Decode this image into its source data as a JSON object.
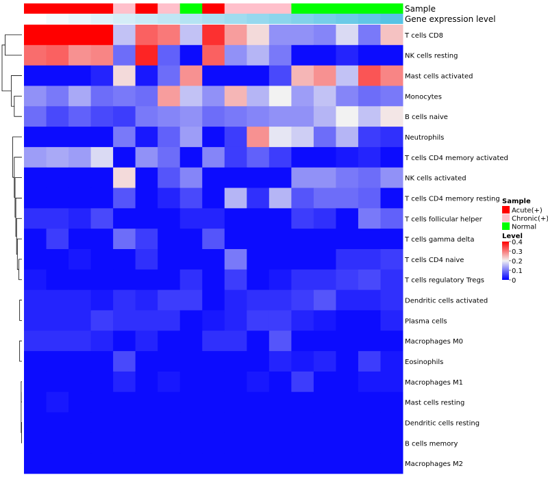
{
  "chart_data": {
    "type": "heatmap",
    "annotation_rows": [
      "Sample",
      "Gene expression level"
    ],
    "sample_groups": [
      "Acute(+)",
      "Acute(+)",
      "Acute(+)",
      "Acute(+)",
      "Chronic(+)",
      "Acute(+)",
      "Chronic(+)",
      "Normal",
      "Acute(+)",
      "Chronic(+)",
      "Chronic(+)",
      "Chronic(+)",
      "Normal",
      "Normal",
      "Normal",
      "Normal",
      "Normal"
    ],
    "expression_gradient": [
      "#ffffff",
      "#f4fafd",
      "#eaf6fb",
      "#dff1f9",
      "#d5edf7",
      "#caeaf6",
      "#c0e6f4",
      "#b5e3f3",
      "#abdff1",
      "#a0dcef",
      "#96d8ee",
      "#8bd5ec",
      "#81d1ea",
      "#76cde9",
      "#6ccae7",
      "#61c6e6",
      "#57c3e4"
    ],
    "rows": [
      {
        "label": "T cells CD8",
        "values": [
          0.4,
          0.4,
          0.4,
          0.4,
          0.16,
          0.32,
          0.3,
          0.16,
          0.36,
          0.27,
          0.22,
          0.12,
          0.12,
          0.11,
          0.18,
          0.1,
          0.24
        ]
      },
      {
        "label": "NK cells resting",
        "values": [
          0.31,
          0.32,
          0.28,
          0.29,
          0.09,
          0.37,
          0.08,
          0.01,
          0.32,
          0.12,
          0.15,
          0.1,
          0.01,
          0.01,
          0.03,
          0.01,
          0.01
        ]
      },
      {
        "label": "Mast cells activated",
        "values": [
          0.01,
          0.01,
          0.01,
          0.03,
          0.22,
          0.02,
          0.09,
          0.28,
          0.01,
          0.01,
          0.01,
          0.06,
          0.25,
          0.28,
          0.16,
          0.33,
          0.29
        ]
      },
      {
        "label": "Monocytes",
        "values": [
          0.12,
          0.1,
          0.14,
          0.09,
          0.1,
          0.09,
          0.27,
          0.16,
          0.12,
          0.25,
          0.15,
          0.2,
          0.13,
          0.16,
          0.11,
          0.09,
          0.1
        ]
      },
      {
        "label": "B cells naive",
        "values": [
          0.09,
          0.06,
          0.08,
          0.06,
          0.05,
          0.1,
          0.11,
          0.12,
          0.09,
          0.1,
          0.11,
          0.12,
          0.12,
          0.15,
          0.2,
          0.16,
          0.21
        ]
      },
      {
        "label": "Neutrophils",
        "values": [
          0.01,
          0.01,
          0.01,
          0.01,
          0.1,
          0.02,
          0.08,
          0.13,
          0.01,
          0.05,
          0.28,
          0.19,
          0.17,
          0.09,
          0.15,
          0.05,
          0.04
        ]
      },
      {
        "label": "T cells CD4 memory activated",
        "values": [
          0.13,
          0.14,
          0.13,
          0.18,
          0.01,
          0.12,
          0.09,
          0.01,
          0.11,
          0.05,
          0.08,
          0.05,
          0.01,
          0.01,
          0.02,
          0.03,
          0.01
        ]
      },
      {
        "label": "NK cells activated",
        "values": [
          0.01,
          0.01,
          0.01,
          0.01,
          0.22,
          0.01,
          0.07,
          0.11,
          0.01,
          0.01,
          0.01,
          0.01,
          0.12,
          0.12,
          0.1,
          0.09,
          0.12
        ]
      },
      {
        "label": "T cells CD4 memory resting",
        "values": [
          0.01,
          0.01,
          0.01,
          0.01,
          0.07,
          0.01,
          0.03,
          0.06,
          0.01,
          0.15,
          0.04,
          0.15,
          0.07,
          0.09,
          0.09,
          0.08,
          0.01
        ]
      },
      {
        "label": "T cells follicular helper",
        "values": [
          0.04,
          0.04,
          0.03,
          0.06,
          0.01,
          0.01,
          0.01,
          0.03,
          0.03,
          0.01,
          0.01,
          0.01,
          0.05,
          0.04,
          0.01,
          0.1,
          0.08
        ]
      },
      {
        "label": "T cells gamma delta",
        "values": [
          0.01,
          0.05,
          0.01,
          0.01,
          0.09,
          0.05,
          0.01,
          0.01,
          0.07,
          0.01,
          0.01,
          0.01,
          0.01,
          0.01,
          0.01,
          0.01,
          0.01
        ]
      },
      {
        "label": "T cells CD4 naive",
        "values": [
          0.01,
          0.01,
          0.02,
          0.01,
          0.01,
          0.04,
          0.01,
          0.01,
          0.01,
          0.1,
          0.01,
          0.01,
          0.01,
          0.01,
          0.04,
          0.04,
          0.05
        ]
      },
      {
        "label": "T cells regulatory  Tregs",
        "values": [
          0.02,
          0.01,
          0.01,
          0.01,
          0.01,
          0.01,
          0.01,
          0.04,
          0.01,
          0.05,
          0.01,
          0.02,
          0.04,
          0.04,
          0.05,
          0.06,
          0.04
        ]
      },
      {
        "label": "Dendritic cells activated",
        "values": [
          0.03,
          0.03,
          0.03,
          0.02,
          0.04,
          0.03,
          0.05,
          0.05,
          0.01,
          0.03,
          0.04,
          0.04,
          0.05,
          0.07,
          0.03,
          0.03,
          0.04
        ]
      },
      {
        "label": "Plasma cells",
        "values": [
          0.03,
          0.03,
          0.03,
          0.05,
          0.04,
          0.04,
          0.04,
          0.01,
          0.02,
          0.03,
          0.05,
          0.05,
          0.03,
          0.02,
          0.01,
          0.01,
          0.03
        ]
      },
      {
        "label": "Macrophages M0",
        "values": [
          0.04,
          0.04,
          0.04,
          0.03,
          0.01,
          0.03,
          0.01,
          0.01,
          0.04,
          0.04,
          0.01,
          0.07,
          0.01,
          0.01,
          0.01,
          0.01,
          0.01
        ]
      },
      {
        "label": "Eosinophils",
        "values": [
          0.01,
          0.01,
          0.01,
          0.01,
          0.06,
          0.01,
          0.01,
          0.01,
          0.01,
          0.01,
          0.01,
          0.03,
          0.02,
          0.03,
          0.01,
          0.05,
          0.02
        ]
      },
      {
        "label": "Macrophages M1",
        "values": [
          0.01,
          0.01,
          0.01,
          0.01,
          0.03,
          0.01,
          0.02,
          0.01,
          0.01,
          0.01,
          0.02,
          0.01,
          0.05,
          0.01,
          0.01,
          0.02,
          0.02
        ]
      },
      {
        "label": "Mast cells resting",
        "values": [
          0.01,
          0.02,
          0.01,
          0.01,
          0.01,
          0.01,
          0.01,
          0.01,
          0.01,
          0.01,
          0.01,
          0.01,
          0.01,
          0.01,
          0.01,
          0.01,
          0.01
        ]
      },
      {
        "label": "Dendritic cells resting",
        "values": [
          0.01,
          0.01,
          0.01,
          0.01,
          0.01,
          0.01,
          0.01,
          0.01,
          0.01,
          0.01,
          0.01,
          0.01,
          0.01,
          0.01,
          0.01,
          0.01,
          0.01
        ]
      },
      {
        "label": "B cells memory",
        "values": [
          0.01,
          0.01,
          0.01,
          0.01,
          0.01,
          0.01,
          0.01,
          0.01,
          0.01,
          0.01,
          0.01,
          0.01,
          0.01,
          0.01,
          0.01,
          0.01,
          0.01
        ]
      },
      {
        "label": "Macrophages M2",
        "values": [
          0.01,
          0.01,
          0.01,
          0.01,
          0.01,
          0.01,
          0.01,
          0.01,
          0.01,
          0.01,
          0.01,
          0.01,
          0.01,
          0.01,
          0.01,
          0.01,
          0.01
        ]
      }
    ],
    "dendrogram_merges": [
      [
        [
          17
        ],
        [
          18
        ],
        0.01
      ],
      [
        [
          19
        ],
        [
          20
        ],
        0.005
      ],
      [
        [
          18
        ],
        [
          19
        ],
        0.01
      ],
      [
        [
          15
        ],
        [
          16
        ],
        0.03
      ],
      [
        [
          13
        ],
        [
          14
        ],
        0.03
      ],
      [
        [
          11
        ],
        [
          12
        ],
        0.04
      ],
      [
        [
          10
        ],
        [
          11
        ],
        0.06
      ],
      [
        [
          9
        ],
        [
          10
        ],
        0.07
      ],
      [
        [
          8
        ],
        [
          9
        ],
        0.08
      ],
      [
        [
          7
        ],
        [
          8
        ],
        0.09
      ],
      [
        [
          6
        ],
        [
          7
        ],
        0.1
      ],
      [
        [
          5
        ],
        [
          6
        ],
        0.12
      ],
      [
        [
          3
        ],
        [
          4
        ],
        0.1
      ],
      [
        [
          2
        ],
        [
          3
        ],
        0.14
      ],
      [
        [
          0
        ],
        [
          1
        ],
        0.22
      ],
      [
        [
          0
        ],
        [
          2
        ],
        0.26
      ]
    ],
    "scale_min": 0,
    "scale_max": 0.4,
    "color_stops": [
      {
        "value": 0,
        "color": "#0000ff"
      },
      {
        "value": 0.2,
        "color": "#f2f2f2"
      },
      {
        "value": 0.4,
        "color": "#ff0000"
      }
    ],
    "legend": {
      "sample_title": "Sample",
      "sample_entries": [
        {
          "label": "Acute(+)",
          "color": "#ff0000"
        },
        {
          "label": "Chronic(+)",
          "color": "#ffc0cb"
        },
        {
          "label": "Normal",
          "color": "#00ff00"
        }
      ],
      "level_title": "Level",
      "level_ticks": [
        "0.4",
        "0.3",
        "0.2",
        "0.1",
        "0"
      ]
    }
  }
}
